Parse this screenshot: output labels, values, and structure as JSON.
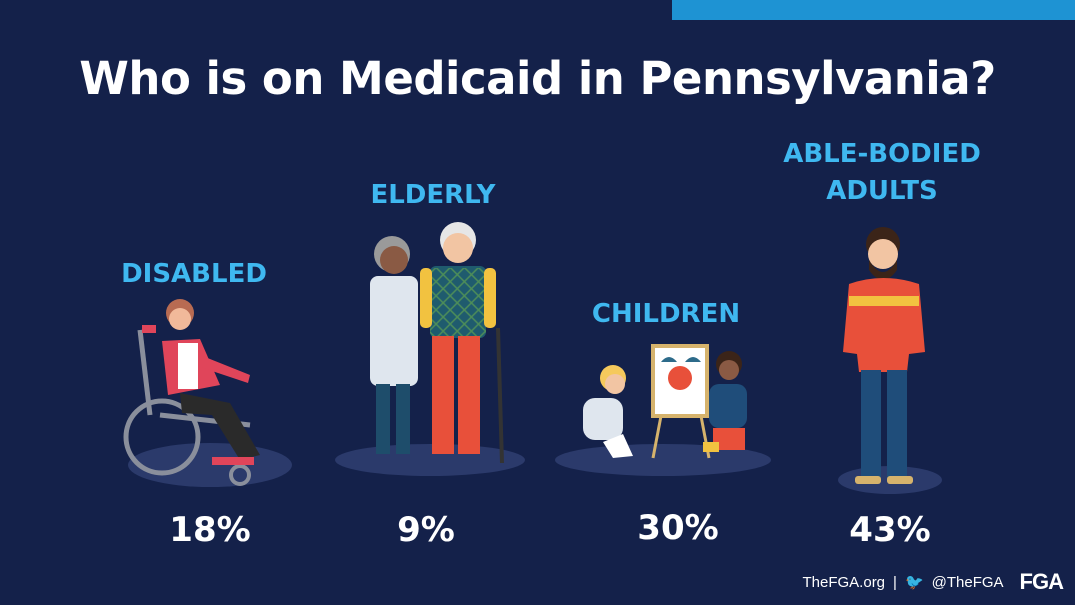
{
  "chart_data": {
    "type": "bar",
    "title": "Who is on Medicaid in Pennsylvania?",
    "categories": [
      "DISABLED",
      "ELDERLY",
      "CHILDREN",
      "ABLE-BODIED ADULTS"
    ],
    "values": [
      18,
      9,
      30,
      43
    ],
    "value_labels": [
      "18%",
      "9%",
      "30%",
      "43%"
    ],
    "unit": "%"
  },
  "labels": {
    "disabled": "DISABLED",
    "elderly": "ELDERLY",
    "children": "CHILDREN",
    "able_line1": "ABLE-BODIED",
    "able_line2": "ADULTS"
  },
  "footer": {
    "site": "TheFGA.org",
    "separator": "|",
    "handle": "@TheFGA",
    "logo": "FGA"
  },
  "colors": {
    "background": "#14214a",
    "accent": "#1e93d3",
    "label": "#3fb8f0",
    "text": "#ffffff"
  }
}
